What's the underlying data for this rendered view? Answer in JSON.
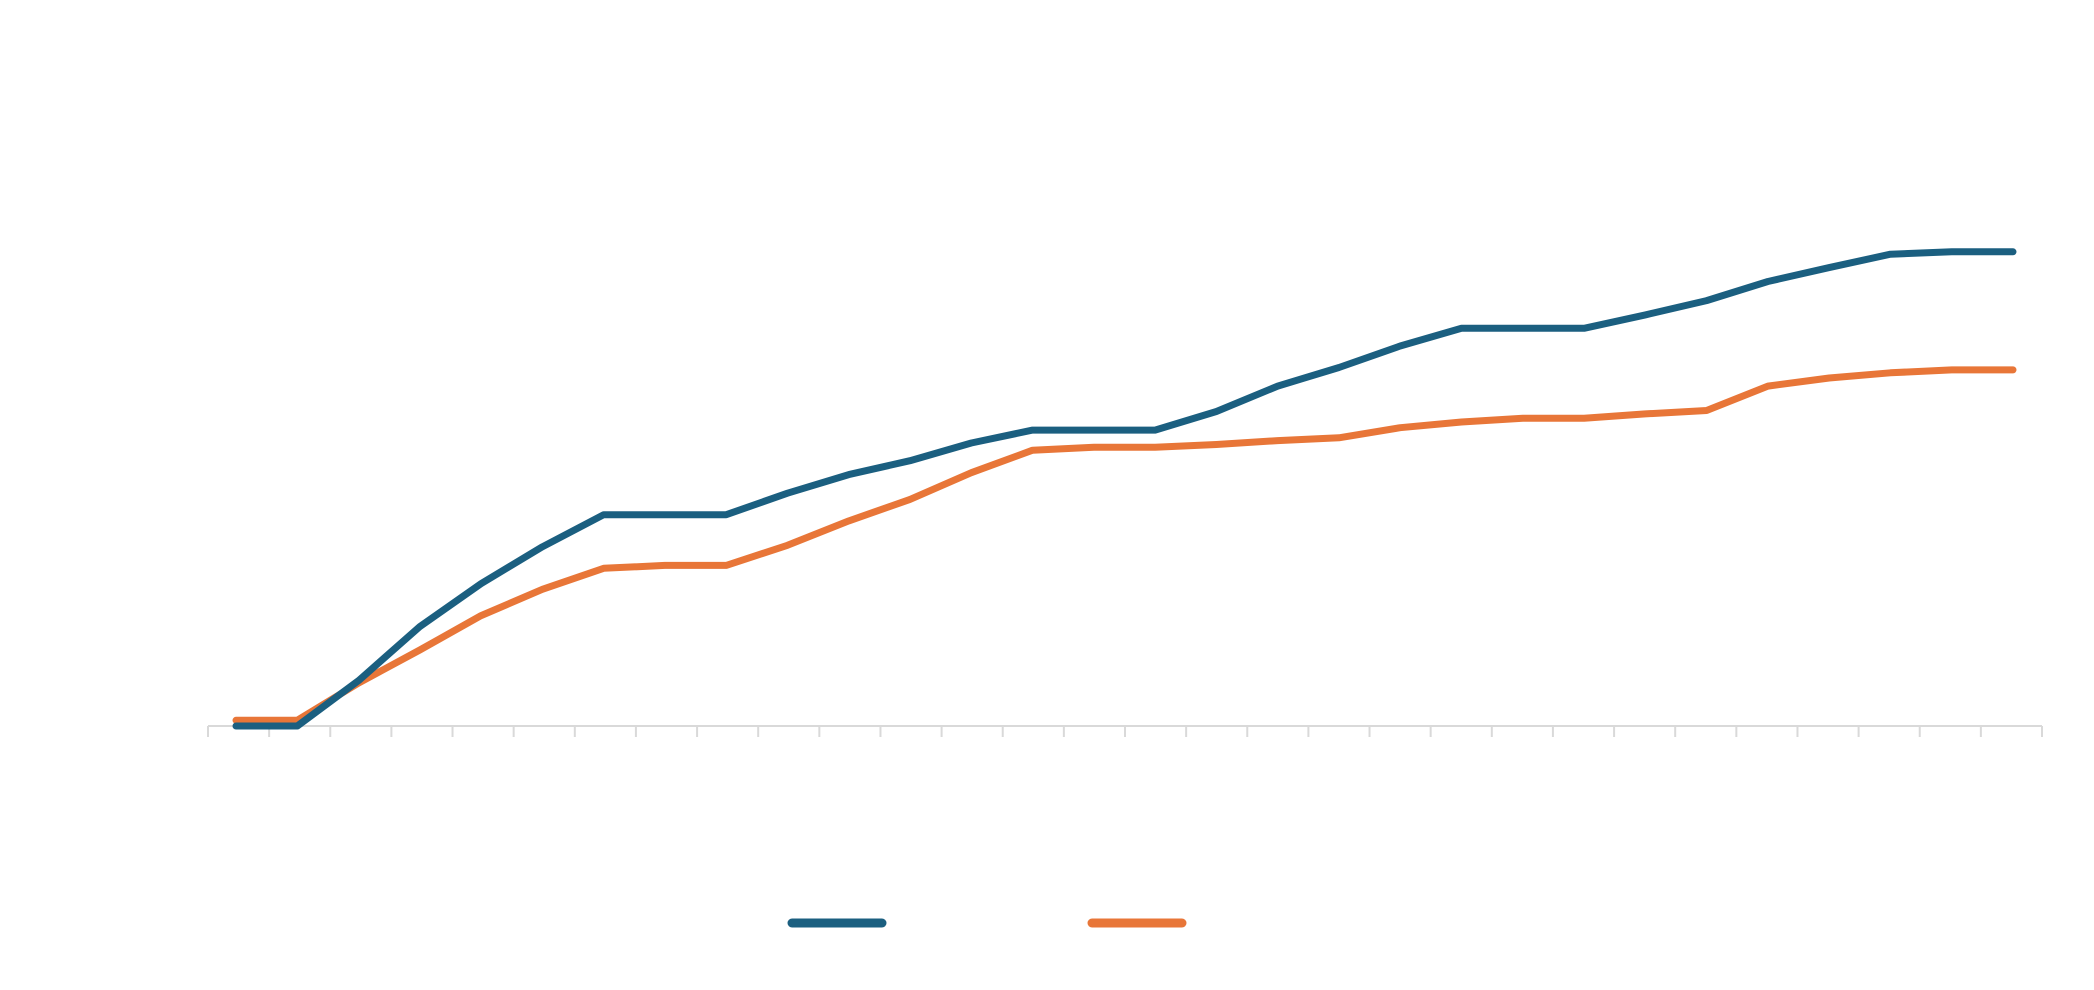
{
  "chart_data": {
    "type": "line",
    "title": "",
    "xlabel": "",
    "ylabel": "",
    "x_tick_count": 30,
    "grid": false,
    "legend_position": "bottom-center",
    "ylim": [
      0,
      100
    ],
    "series": [
      {
        "name": "",
        "color": "#1b5f80",
        "values": [
          0,
          0,
          9.5,
          20.8,
          29.8,
          37.5,
          44.2,
          44.2,
          44.2,
          48.7,
          52.6,
          55.5,
          59.2,
          61.9,
          61.9,
          61.9,
          65.8,
          71.1,
          75.0,
          79.5,
          83.2,
          83.2,
          83.2,
          86.0,
          89.0,
          93.0,
          95.9,
          98.7,
          99.2,
          99.2
        ]
      },
      {
        "name": "",
        "color": "#e87638",
        "values": [
          1.2,
          1.2,
          9.0,
          15.9,
          23.1,
          28.6,
          33.0,
          33.6,
          33.6,
          37.8,
          42.9,
          47.4,
          53.0,
          57.7,
          58.3,
          58.3,
          58.9,
          59.7,
          60.3,
          62.4,
          63.6,
          64.4,
          64.4,
          65.3,
          66.0,
          71.1,
          72.8,
          73.9,
          74.5,
          74.5
        ]
      }
    ]
  }
}
